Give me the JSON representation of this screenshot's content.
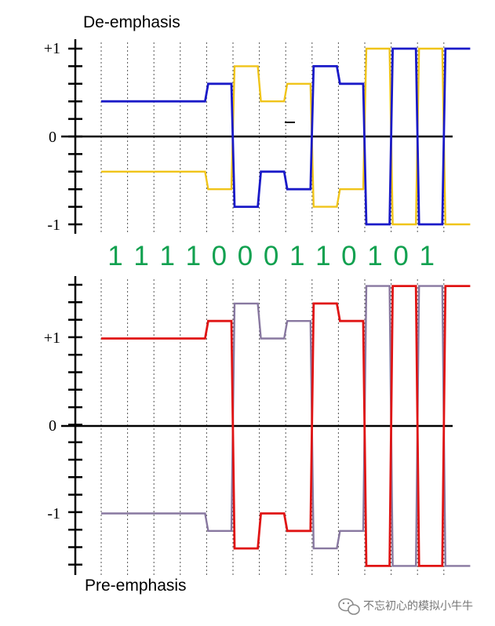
{
  "colors": {
    "background": "#ffffff",
    "axis": "#000000",
    "gridline": "#555555",
    "bit_text": "#12a150",
    "de_main": "#1a1ac8",
    "de_complement": "#f0c419",
    "pre_main": "#e01414",
    "pre_complement": "#8878a0",
    "watermark_text": "#777777"
  },
  "labels": {
    "top_title": "De-emphasis",
    "bottom_title": "Pre-emphasis",
    "top_plus": "+1",
    "top_zero": "0",
    "top_minus": "-1",
    "bottom_plus": "+1",
    "bottom_zero": "0",
    "bottom_minus": "-1"
  },
  "bits": [
    "1",
    "1",
    "1",
    "1",
    "0",
    "0",
    "0",
    "1",
    "1",
    "0",
    "1",
    "0",
    "1"
  ],
  "watermark": {
    "icon": "wechat-icon",
    "text": "不忘初心的模拟小牛牛"
  },
  "chart_data": [
    {
      "type": "line",
      "title": "De-emphasis",
      "ylim": [
        -1,
        1
      ],
      "y_tick_labels": [
        "+1",
        "0",
        "-1"
      ],
      "x_unit": "bit period",
      "step_times": [
        0,
        3,
        4,
        5,
        6,
        7,
        8,
        9,
        10,
        11,
        12,
        13,
        14
      ],
      "series": [
        {
          "role": "main",
          "color": "#1a1ac8",
          "values": [
            0.4,
            0.4,
            0.6,
            -0.8,
            -0.4,
            -0.6,
            0.8,
            0.6,
            -1,
            1,
            -1,
            1
          ]
        },
        {
          "role": "complement",
          "color": "#f0c419",
          "values": [
            -0.4,
            -0.4,
            -0.6,
            0.8,
            0.4,
            0.6,
            -0.8,
            -0.6,
            1,
            -1,
            1,
            -1
          ]
        }
      ]
    },
    {
      "type": "line",
      "title": "Pre-emphasis",
      "ylim": [
        -1.6,
        1.6
      ],
      "y_tick_labels": [
        "+1",
        "0",
        "-1"
      ],
      "x_unit": "bit period",
      "step_times": [
        0,
        3,
        4,
        5,
        6,
        7,
        8,
        9,
        10,
        11,
        12,
        13,
        14
      ],
      "series": [
        {
          "role": "main",
          "color": "#e01414",
          "values": [
            1,
            1,
            1.2,
            -1.4,
            -1,
            -1.2,
            1.4,
            1.2,
            -1.6,
            1.6,
            -1.6,
            1.6
          ]
        },
        {
          "role": "complement",
          "color": "#8878a0",
          "values": [
            -1,
            -1,
            -1.2,
            1.4,
            1,
            1.2,
            -1.4,
            -1.2,
            1.6,
            -1.6,
            1.6,
            -1.6
          ]
        }
      ]
    }
  ]
}
